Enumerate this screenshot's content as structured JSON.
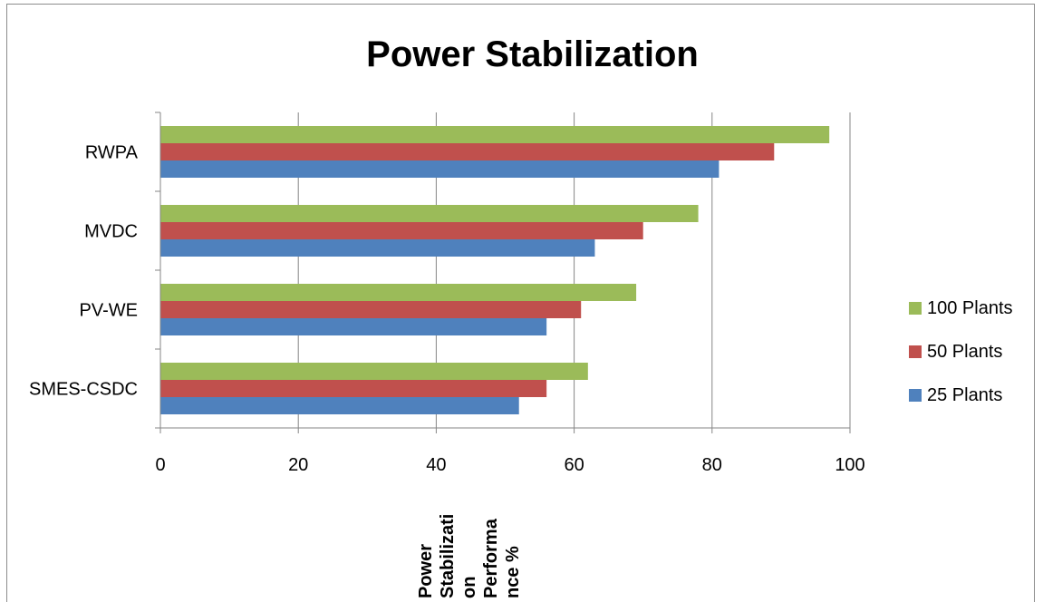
{
  "chart_data": {
    "type": "bar",
    "orientation": "horizontal",
    "title": "Power Stabilization",
    "xlabel_lines": [
      "Power",
      "Stabilizati",
      "on",
      "Performa",
      "nce %"
    ],
    "ylabel": "",
    "categories": [
      "RWPA",
      "MVDC",
      "PV-WE",
      "SMES-CSDC"
    ],
    "series": [
      {
        "name": "100 Plants",
        "color": "#9bbb59",
        "values": [
          97,
          78,
          69,
          62
        ]
      },
      {
        "name": "50 Plants",
        "color": "#c0504d",
        "values": [
          89,
          70,
          61,
          56
        ]
      },
      {
        "name": "25 Plants",
        "color": "#4f81bd",
        "values": [
          81,
          63,
          56,
          52
        ]
      }
    ],
    "xlim": [
      0,
      100
    ],
    "xticks": [
      0,
      20,
      40,
      60,
      80,
      100
    ],
    "grid": "vertical",
    "legend_position": "right"
  }
}
